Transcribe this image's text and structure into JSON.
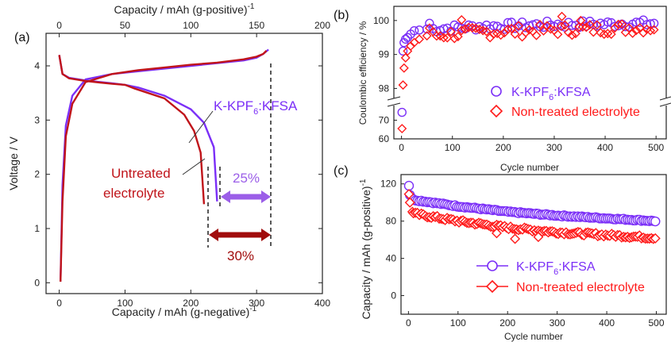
{
  "colors": {
    "purple": "#7b2ff7",
    "red": "#c0141a",
    "bright_red": "#ff1a1a",
    "dark_red": "#a10d0d",
    "light_purple": "#9b5ee8"
  },
  "chart_data": [
    {
      "id": "a",
      "type": "line",
      "panel_label": "(a)",
      "xlabel": "Capacity / mAh (g-negative)",
      "xlabel_sup": "-1",
      "x2label": "Capacity / mAh (g-positive)",
      "x2label_sup": "-1",
      "ylabel": "Voltage / V",
      "xlim": [
        -20,
        400
      ],
      "ylim": [
        -0.2,
        4.6
      ],
      "x2lim": [
        -10,
        200
      ],
      "xticks": [
        0,
        100,
        200,
        300,
        400
      ],
      "x2ticks": [
        0,
        50,
        100,
        150,
        200
      ],
      "yticks": [
        0,
        1,
        2,
        3,
        4
      ],
      "series": [
        {
          "name": "K-KPF₆:KFSA",
          "color": "#7b2ff7",
          "charge": {
            "x": [
              2,
              5,
              10,
              20,
              40,
              80,
              120,
              160,
              200,
              240,
              280,
              300,
              310,
              318
            ],
            "y": [
              0.02,
              1.8,
              2.9,
              3.45,
              3.75,
              3.85,
              3.9,
              3.95,
              4.0,
              4.05,
              4.1,
              4.15,
              4.22,
              4.3
            ]
          },
          "discharge": {
            "x": [
              0,
              5,
              15,
              40,
              80,
              100,
              120,
              160,
              200,
              220,
              235,
              240
            ],
            "y": [
              4.2,
              3.85,
              3.78,
              3.73,
              3.68,
              3.65,
              3.6,
              3.45,
              3.2,
              2.95,
              2.5,
              1.5
            ]
          }
        },
        {
          "name": "Untreated electrolyte",
          "color": "#c0141a",
          "charge": {
            "x": [
              2,
              5,
              10,
              20,
              40,
              80,
              120,
              160,
              200,
              240,
              280,
              300,
              310,
              315
            ],
            "y": [
              0.02,
              1.5,
              2.7,
              3.3,
              3.7,
              3.85,
              3.92,
              3.97,
              4.02,
              4.06,
              4.12,
              4.17,
              4.22,
              4.28
            ]
          },
          "discharge": {
            "x": [
              0,
              5,
              15,
              40,
              80,
              100,
              115,
              160,
              190,
              205,
              215,
              220
            ],
            "y": [
              4.2,
              3.85,
              3.77,
              3.72,
              3.67,
              3.65,
              3.58,
              3.4,
              3.1,
              2.8,
              2.4,
              1.45
            ]
          }
        }
      ],
      "labels": {
        "kkpf_main": "K-KPF",
        "kkpf_sub": "6",
        "kkpf_tail": ":KFSA",
        "untreated_line1": "Untreated",
        "untreated_line2": "electrolyte"
      },
      "annotations": [
        {
          "text": "25%"
        },
        {
          "text": "30%"
        }
      ]
    },
    {
      "id": "b",
      "type": "scatter",
      "panel_label": "(b)",
      "xlabel": "Cycle number",
      "ylabel": "Coulombic efficiency / %",
      "xlim": [
        -15,
        520
      ],
      "upper_ylim": [
        97.8,
        100.3
      ],
      "lower_ylim": [
        60,
        77
      ],
      "xticks": [
        0,
        100,
        200,
        300,
        400,
        500
      ],
      "upper_yticks": [
        98,
        99,
        100
      ],
      "lower_yticks": [
        60,
        70
      ],
      "legend": [
        "K-KPF₆:KFSA",
        "Non-treated electrolyte"
      ],
      "legend_parts": {
        "kkpf_main": "K-KPF",
        "kkpf_sub": "6",
        "kkpf_tail": ":KFSA",
        "nontreated": "Non-treated electrolyte"
      },
      "series": [
        {
          "name": "K-KPF₆:KFSA",
          "marker": "circle",
          "color": "#7b2ff7",
          "early": [
            [
              1,
              74.2
            ],
            [
              3,
              99.1
            ],
            [
              5,
              99.35
            ],
            [
              8,
              99.45
            ],
            [
              12,
              99.5
            ],
            [
              18,
              99.6
            ],
            [
              25,
              99.7
            ],
            [
              35,
              99.72
            ],
            [
              50,
              99.75
            ]
          ],
          "trend": [
            [
              60,
              99.75
            ],
            [
              150,
              99.82
            ],
            [
              300,
              99.88
            ],
            [
              500,
              99.92
            ]
          ]
        },
        {
          "name": "Non-treated electrolyte",
          "marker": "diamond",
          "color": "#ff1a1a",
          "early": [
            [
              1,
              65.5
            ],
            [
              3,
              98.1
            ],
            [
              5,
              98.6
            ],
            [
              8,
              98.9
            ],
            [
              12,
              99.1
            ],
            [
              18,
              99.25
            ],
            [
              25,
              99.35
            ],
            [
              35,
              99.45
            ],
            [
              50,
              99.55
            ]
          ],
          "trend": [
            [
              60,
              99.55
            ],
            [
              150,
              99.65
            ],
            [
              300,
              99.72
            ],
            [
              500,
              99.8
            ]
          ],
          "outliers": [
            [
              118,
              100.02
            ],
            [
              315,
              100.12
            ],
            [
              352,
              100.0
            ]
          ]
        }
      ]
    },
    {
      "id": "c",
      "type": "scatter",
      "panel_label": "(c)",
      "xlabel": "Cycle number",
      "ylabel": "Capacity / mAh (g-positive)",
      "ylabel_sup": "-1",
      "xlim": [
        -15,
        520
      ],
      "ylim": [
        -20,
        130
      ],
      "xticks": [
        0,
        100,
        200,
        300,
        400,
        500
      ],
      "yticks": [
        0,
        40,
        80,
        120
      ],
      "legend": [
        "K-KPF₆:KFSA",
        "Non-treated electrolyte"
      ],
      "legend_parts": {
        "kkpf_main": "K-KPF",
        "kkpf_sub": "6",
        "kkpf_tail": ":KFSA",
        "nontreated": "Non-treated electrolyte"
      },
      "series": [
        {
          "name": "K-KPF₆:KFSA",
          "marker": "circle",
          "color": "#7b2ff7",
          "early": [
            [
              1,
              118
            ],
            [
              3,
              108
            ],
            [
              8,
              104
            ]
          ],
          "trend": [
            [
              10,
              103
            ],
            [
              100,
              96
            ],
            [
              200,
              90
            ],
            [
              300,
              86
            ],
            [
              400,
              83
            ],
            [
              500,
              80
            ]
          ]
        },
        {
          "name": "Non-treated electrolyte",
          "marker": "diamond",
          "color": "#ff1a1a",
          "early": [
            [
              1,
              109
            ],
            [
              3,
              100
            ],
            [
              8,
              90
            ]
          ],
          "trend": [
            [
              10,
              88
            ],
            [
              100,
              80
            ],
            [
              200,
              73
            ],
            [
              300,
              68
            ],
            [
              400,
              65
            ],
            [
              500,
              62
            ]
          ],
          "outliers": [
            [
              215,
              61
            ],
            [
              178,
              67
            ],
            [
              262,
              63
            ]
          ]
        }
      ]
    }
  ]
}
